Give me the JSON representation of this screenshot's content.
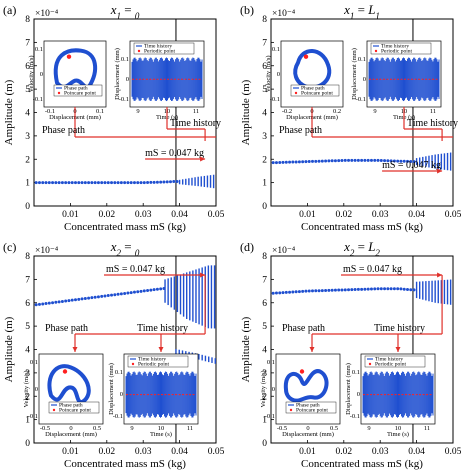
{
  "chart_data": [
    {
      "type": "scatter",
      "panel_label": "(a)",
      "title": "x1 = 0",
      "xlabel": "Concentrated mass mS (kg)",
      "ylabel": "Amplitude (m)",
      "y_multiplier": "×10⁻⁴",
      "xlim": [
        0,
        0.05
      ],
      "ylim": [
        0,
        8
      ],
      "xticks": [
        "0.01",
        "0.02",
        "0.03",
        "0.04",
        "0.05"
      ],
      "yticks": [
        "0",
        "1",
        "2",
        "3",
        "4",
        "5",
        "6",
        "7",
        "8"
      ],
      "grid": false,
      "vline_x": 0.039,
      "period_start_x": 0.04,
      "amplitude_curve": [
        [
          0.0,
          1.0
        ],
        [
          0.01,
          1.0
        ],
        [
          0.02,
          1.0
        ],
        [
          0.03,
          1.0
        ],
        [
          0.035,
          1.02
        ],
        [
          0.039,
          1.05
        ]
      ],
      "bands": [
        [
          0.04,
          0.93,
          1.12
        ],
        [
          0.045,
          0.85,
          1.25
        ],
        [
          0.05,
          0.75,
          1.35
        ]
      ],
      "annotation_mass": "mS = 0.047 kg",
      "annotation_phase": "Phase path",
      "annotation_time": "Time history",
      "inset_phase": {
        "ylabel": "Velocity (m/s)",
        "xlabel": "Displacement (mm)",
        "xticks": [
          "-0.1",
          "0",
          "0.1"
        ],
        "yticks": [
          "0.1",
          "0",
          "-0.1"
        ],
        "legend": [
          "Phase path",
          "Poincare point"
        ]
      },
      "inset_time": {
        "ylabel": "Displacement (mm)",
        "xlabel": "Time (s)",
        "xticks": [
          "9",
          "10",
          "11"
        ],
        "yticks": [
          "0.1",
          "0",
          "-0.1"
        ],
        "legend": [
          "Time history",
          "Periodic point"
        ]
      }
    },
    {
      "type": "scatter",
      "panel_label": "(b)",
      "title": "x1 = L1",
      "xlabel": "Concentrated mass mS (kg)",
      "ylabel": "Amplitude (m)",
      "y_multiplier": "×10⁻⁴",
      "xlim": [
        0,
        0.05
      ],
      "ylim": [
        0,
        8
      ],
      "xticks": [
        "0.01",
        "0.02",
        "0.03",
        "0.04",
        "0.05"
      ],
      "yticks": [
        "0",
        "1",
        "2",
        "3",
        "4",
        "5",
        "6",
        "7",
        "8"
      ],
      "grid": false,
      "vline_x": 0.039,
      "period_start_x": 0.04,
      "amplitude_curve": [
        [
          0.0,
          1.85
        ],
        [
          0.01,
          1.9
        ],
        [
          0.02,
          1.95
        ],
        [
          0.03,
          1.95
        ],
        [
          0.035,
          1.92
        ],
        [
          0.039,
          1.9
        ]
      ],
      "bands": [
        [
          0.04,
          1.75,
          2.05
        ],
        [
          0.045,
          1.6,
          2.2
        ],
        [
          0.05,
          1.5,
          2.3
        ]
      ],
      "annotation_mass": "mS = 0.047 kg",
      "annotation_phase": "Phase path",
      "annotation_time": "Time history",
      "inset_phase": {
        "ylabel": "Velocity (m/s)",
        "xlabel": "Displacement (mm)",
        "xticks": [
          "-0.2",
          "0",
          "0.2"
        ],
        "yticks": [
          "0.1",
          "0",
          "-0.1"
        ],
        "legend": [
          "Phase path",
          "Poincare point"
        ]
      },
      "inset_time": {
        "ylabel": "Displacement (mm)",
        "xlabel": "Time (s)",
        "xticks": [
          "9",
          "10",
          "11"
        ],
        "yticks": [
          "0.1",
          "0",
          "-0.1"
        ],
        "legend": [
          "Time history",
          "Periodic point"
        ]
      }
    },
    {
      "type": "scatter",
      "panel_label": "(c)",
      "title": "x2 = 0",
      "xlabel": "Concentrated mass mS (kg)",
      "ylabel": "Amplitude (m)",
      "y_multiplier": "×10⁻⁴",
      "xlim": [
        0,
        0.05
      ],
      "ylim": [
        0,
        8
      ],
      "xticks": [
        "0.01",
        "0.02",
        "0.03",
        "0.04",
        "0.05"
      ],
      "yticks": [
        "0",
        "1",
        "2",
        "3",
        "4",
        "5",
        "6",
        "7",
        "8"
      ],
      "grid": false,
      "vline_x": 0.039,
      "period_start_x": 0.036,
      "amplitude_curve": [
        [
          0.0,
          5.9
        ],
        [
          0.01,
          6.1
        ],
        [
          0.02,
          6.3
        ],
        [
          0.03,
          6.5
        ],
        [
          0.035,
          6.6
        ],
        [
          0.039,
          6.65
        ]
      ],
      "bands": [
        [
          0.036,
          6.0,
          7.0
        ],
        [
          0.042,
          5.3,
          7.3
        ],
        [
          0.048,
          4.9,
          7.6
        ]
      ],
      "lower_branch": [
        [
          0.039,
          3.9
        ],
        [
          0.045,
          3.7
        ],
        [
          0.05,
          3.5
        ]
      ],
      "annotation_mass": "mS = 0.047 kg",
      "annotation_phase": "Phase path",
      "annotation_time": "Time history",
      "inset_phase": {
        "ylabel": "Velocity (m/s)",
        "xlabel": "Displacement (mm)",
        "xticks": [
          "-0.5",
          "0",
          "0.5"
        ],
        "yticks": [
          "0.1",
          "0",
          "-0.1"
        ],
        "legend": [
          "Phase path",
          "Poincare point"
        ]
      },
      "inset_time": {
        "ylabel": "Displacement (mm)",
        "xlabel": "Time (s)",
        "xticks": [
          "9",
          "10",
          "11"
        ],
        "yticks": [
          "0.1",
          "0",
          "-0.1"
        ],
        "legend": [
          "Time history",
          "Periodic point"
        ]
      }
    },
    {
      "type": "scatter",
      "panel_label": "(d)",
      "title": "x2 = L2",
      "xlabel": "Concentrated mass mS (kg)",
      "ylabel": "Amplitude (m)",
      "y_multiplier": "×10⁻⁴",
      "xlim": [
        0,
        0.05
      ],
      "ylim": [
        0,
        8
      ],
      "xticks": [
        "0.01",
        "0.02",
        "0.03",
        "0.04",
        "0.05"
      ],
      "yticks": [
        "0",
        "1",
        "2",
        "3",
        "4",
        "5",
        "6",
        "7",
        "8"
      ],
      "grid": false,
      "vline_x": 0.039,
      "period_start_x": 0.04,
      "amplitude_curve": [
        [
          0.0,
          6.4
        ],
        [
          0.01,
          6.5
        ],
        [
          0.02,
          6.55
        ],
        [
          0.03,
          6.6
        ],
        [
          0.035,
          6.6
        ],
        [
          0.039,
          6.55
        ]
      ],
      "bands": [
        [
          0.04,
          6.2,
          6.9
        ],
        [
          0.045,
          6.0,
          6.95
        ],
        [
          0.05,
          5.9,
          7.0
        ]
      ],
      "annotation_mass": "mS = 0.047 kg",
      "annotation_phase": "Phase path",
      "annotation_time": "Time history",
      "inset_phase": {
        "ylabel": "Velocity (m/s)",
        "xlabel": "Displacement (mm)",
        "xticks": [
          "-0.5",
          "0",
          "0.5"
        ],
        "yticks": [
          "0.1",
          "0",
          "-0.1"
        ],
        "legend": [
          "Phase path",
          "Poincare point"
        ]
      },
      "inset_time": {
        "ylabel": "Displacement (mm)",
        "xlabel": "Time (s)",
        "xticks": [
          "9",
          "10",
          "11"
        ],
        "yticks": [
          "0.1",
          "0",
          "-0.1"
        ],
        "legend": [
          "Time history",
          "Periodic point"
        ]
      }
    }
  ],
  "colors": {
    "data": "#1f4fd0",
    "annotation": "#e0302a",
    "axis": "#000000",
    "poincare": "#ff2020"
  }
}
